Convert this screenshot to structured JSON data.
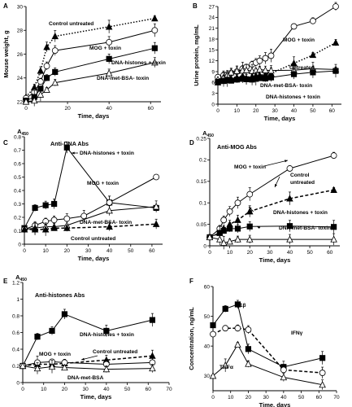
{
  "chart_data": [
    {
      "type": "line",
      "panel": "A",
      "xlabel": "Time, days",
      "ylabel": "Mouse weight, g",
      "xlim": [
        0,
        65
      ],
      "ylim": [
        22,
        30
      ],
      "xticks": [
        0,
        20,
        40,
        60
      ],
      "yticks": [
        22,
        24,
        26,
        28,
        30
      ],
      "series": [
        {
          "name": "Control untreated",
          "marker": "filled-triangle",
          "dash": "dotted",
          "x": [
            0,
            4,
            7,
            10,
            14,
            40,
            62
          ],
          "y": [
            22.4,
            23.2,
            24.6,
            26.6,
            27.5,
            28.3,
            29.0
          ]
        },
        {
          "name": "MOG + toxin",
          "marker": "open-circle",
          "dash": "solid",
          "x": [
            0,
            4,
            7,
            10,
            14,
            40,
            62
          ],
          "y": [
            22.3,
            22.8,
            23.7,
            25.0,
            26.3,
            27.0,
            28.0
          ]
        },
        {
          "name": "DNA-histones + toxin",
          "marker": "filled-square",
          "dash": "solid",
          "x": [
            0,
            4,
            7,
            10,
            14,
            40,
            62
          ],
          "y": [
            22.1,
            22.4,
            23.1,
            24.0,
            24.5,
            25.6,
            26.5
          ]
        },
        {
          "name": "DNA-met-BSA- toxin",
          "marker": "open-triangle",
          "dash": "solid",
          "x": [
            0,
            4,
            7,
            10,
            14,
            40,
            62
          ],
          "y": [
            22.0,
            22.1,
            22.6,
            23.0,
            23.6,
            24.4,
            25.3
          ]
        }
      ]
    },
    {
      "type": "line",
      "panel": "B",
      "xlabel": "Time, days",
      "ylabel": "Urine protein, mg/mL",
      "xlim": [
        0,
        65
      ],
      "ylim": [
        0,
        27
      ],
      "xticks": [
        0,
        10,
        20,
        30,
        40,
        50,
        60
      ],
      "yticks": [
        0,
        3,
        6,
        9,
        12,
        15,
        18,
        21,
        24,
        27
      ],
      "series": [
        {
          "name": "MOG + toxin",
          "marker": "open-circle",
          "dash": "solid",
          "x": [
            0,
            3,
            5,
            7,
            10,
            13,
            15,
            18,
            20,
            22,
            25,
            28,
            40,
            50,
            62
          ],
          "y": [
            7.5,
            8.0,
            8.2,
            8.6,
            9.0,
            9.8,
            10.3,
            11.0,
            11.5,
            12.0,
            12.7,
            13.4,
            21.5,
            23.0,
            27.0
          ]
        },
        {
          "name": "Untreated",
          "marker": "filled-triangle",
          "dash": "dotted",
          "x": [
            0,
            3,
            5,
            7,
            10,
            13,
            15,
            18,
            20,
            22,
            25,
            28,
            40,
            50,
            62
          ],
          "y": [
            6.0,
            6.5,
            6.8,
            7.0,
            7.4,
            7.8,
            7.2,
            7.6,
            7.9,
            8.0,
            8.3,
            8.5,
            11.3,
            13.6,
            17.0
          ]
        },
        {
          "name": "DNA-met-BSA- toxin",
          "marker": "open-triangle",
          "dash": "solid",
          "x": [
            0,
            3,
            5,
            7,
            10,
            13,
            15,
            18,
            20,
            22,
            25,
            28,
            40,
            50,
            62
          ],
          "y": [
            6.8,
            7.4,
            8.2,
            8.8,
            9.2,
            9.3,
            9.4,
            9.2,
            9.3,
            9.6,
            9.4,
            9.3,
            9.4,
            9.8,
            9.6
          ]
        },
        {
          "name": "DNA-histones + toxin",
          "marker": "filled-square",
          "dash": "solid",
          "x": [
            0,
            3,
            5,
            7,
            10,
            13,
            15,
            18,
            20,
            22,
            25,
            28,
            40,
            50,
            62
          ],
          "y": [
            6.2,
            6.4,
            6.6,
            6.5,
            6.8,
            7.0,
            6.9,
            6.8,
            7.0,
            7.2,
            7.1,
            7.4,
            8.3,
            8.8,
            9.2
          ]
        }
      ]
    },
    {
      "type": "line",
      "panel": "C",
      "title": "Anti-DNA Abs",
      "ylabel": "A",
      "ylabel_sub": "450",
      "xlabel": "Time, days",
      "xlim": [
        0,
        65
      ],
      "ylim": [
        0,
        0.8
      ],
      "xticks": [
        0,
        10,
        20,
        30,
        40,
        50,
        60
      ],
      "yticks": [
        0,
        0.1,
        0.2,
        0.3,
        0.4,
        0.5,
        0.6,
        0.7,
        0.8
      ],
      "series": [
        {
          "name": "DNA-histones + toxin",
          "marker": "filled-square",
          "dash": "solid",
          "x": [
            0,
            5,
            10,
            14,
            20,
            40,
            62
          ],
          "y": [
            0.12,
            0.27,
            0.29,
            0.3,
            0.72,
            0.31,
            0.27
          ]
        },
        {
          "name": "MOG + toxin",
          "marker": "open-circle",
          "dash": "solid",
          "x": [
            0,
            5,
            10,
            14,
            20,
            28,
            40,
            62
          ],
          "y": [
            0.11,
            0.14,
            0.17,
            0.18,
            0.19,
            0.21,
            0.31,
            0.5
          ]
        },
        {
          "name": "DNA-met-BSA- toxin",
          "marker": "open-triangle",
          "dash": "solid",
          "x": [
            0,
            5,
            10,
            14,
            20,
            40,
            62
          ],
          "y": [
            0.11,
            0.12,
            0.13,
            0.13,
            0.14,
            0.25,
            0.28
          ]
        },
        {
          "name": "Control untreated",
          "marker": "filled-triangle",
          "dash": "dashed",
          "x": [
            0,
            5,
            10,
            14,
            20,
            40,
            62
          ],
          "y": [
            0.11,
            0.11,
            0.11,
            0.12,
            0.12,
            0.13,
            0.15
          ]
        }
      ]
    },
    {
      "type": "line",
      "panel": "D",
      "title": "Anti-MOG Abs",
      "ylabel": "A",
      "ylabel_sub": "450",
      "xlabel": "Time, days",
      "xlim": [
        0,
        65
      ],
      "ylim": [
        0,
        0.25
      ],
      "xticks": [
        0,
        10,
        20,
        30,
        40,
        50,
        60
      ],
      "yticks": [
        0,
        0.05,
        0.1,
        0.15,
        0.2,
        0.25
      ],
      "series": [
        {
          "name": "MOG + toxin",
          "marker": "open-circle",
          "dash": "solid",
          "x": [
            0,
            5,
            7,
            10,
            14,
            20,
            40,
            62
          ],
          "y": [
            0.02,
            0.04,
            0.06,
            0.08,
            0.1,
            0.12,
            0.18,
            0.21
          ]
        },
        {
          "name": "Control untreated",
          "marker": "filled-triangle",
          "dash": "dashed",
          "x": [
            0,
            5,
            7,
            10,
            14,
            20,
            40,
            62
          ],
          "y": [
            0.02,
            0.03,
            0.04,
            0.05,
            0.06,
            0.08,
            0.11,
            0.13
          ]
        },
        {
          "name": "DNA-histones + toxin",
          "marker": "filled-square",
          "dash": "solid",
          "x": [
            0,
            5,
            7,
            10,
            14,
            20,
            40,
            62
          ],
          "y": [
            0.02,
            0.03,
            0.035,
            0.04,
            0.04,
            0.045,
            0.046,
            0.044
          ]
        },
        {
          "name": "DNA-met-BSA- toxin",
          "marker": "open-triangle",
          "dash": "solid",
          "x": [
            0,
            5,
            7,
            10,
            14,
            20,
            40,
            62
          ],
          "y": [
            0.02,
            0.015,
            0.007,
            0.01,
            0.015,
            0.015,
            0.015,
            0.015
          ]
        }
      ]
    },
    {
      "type": "line",
      "panel": "E",
      "title": "Anti-histones Abs",
      "ylabel": "A",
      "ylabel_sub": "450",
      "xlabel": "Time, days",
      "xlim": [
        0,
        70
      ],
      "ylim": [
        0,
        1.2
      ],
      "xticks": [
        0,
        10,
        20,
        30,
        40,
        50,
        60,
        70
      ],
      "yticks": [
        0,
        0.2,
        0.4,
        0.6,
        0.8,
        1.0,
        1.2
      ],
      "series": [
        {
          "name": "DNA-histones + toxin",
          "marker": "filled-square",
          "dash": "solid",
          "x": [
            0,
            7,
            14,
            20,
            40,
            62
          ],
          "y": [
            0.2,
            0.55,
            0.62,
            0.82,
            0.62,
            0.75
          ]
        },
        {
          "name": "Control untreated",
          "marker": "filled-triangle",
          "dash": "dashed",
          "x": [
            0,
            7,
            14,
            20,
            40,
            62
          ],
          "y": [
            0.2,
            0.22,
            0.22,
            0.23,
            0.27,
            0.32
          ]
        },
        {
          "name": "MOG + toxin",
          "marker": "open-circle",
          "dash": "solid",
          "x": [
            0,
            7,
            14,
            20,
            40,
            62
          ],
          "y": [
            0.2,
            0.24,
            0.25,
            0.24,
            0.22,
            0.24
          ]
        },
        {
          "name": "DNA-met-BSA",
          "marker": "open-triangle",
          "dash": "solid",
          "x": [
            0,
            7,
            14,
            20,
            40,
            62
          ],
          "y": [
            0.2,
            0.17,
            0.19,
            0.18,
            0.16,
            0.17
          ]
        }
      ]
    },
    {
      "type": "line",
      "panel": "F",
      "xlabel": "Time, days",
      "ylabel": "Concentration, ng/mL",
      "xlim": [
        0,
        70
      ],
      "ylim": [
        25,
        60
      ],
      "xticks": [
        0,
        10,
        20,
        30,
        40,
        50,
        60,
        70
      ],
      "yticks": [
        30,
        40,
        50,
        60
      ],
      "series": [
        {
          "name": "IL1β",
          "marker": "filled-square",
          "dash": "solid",
          "x": [
            0,
            7,
            14,
            20,
            40,
            62
          ],
          "y": [
            47,
            52.5,
            54,
            39,
            33,
            36
          ]
        },
        {
          "name": "IFNγ",
          "marker": "open-circle",
          "dash": "dashed",
          "x": [
            0,
            7,
            14,
            20,
            40,
            62
          ],
          "y": [
            44,
            46,
            46,
            45.5,
            32,
            31
          ]
        },
        {
          "name": "TNFα",
          "marker": "open-triangle",
          "dash": "solid",
          "x": [
            0,
            7,
            14,
            20,
            40,
            62
          ],
          "y": [
            30,
            33.5,
            40.5,
            34,
            29.5,
            27
          ]
        }
      ]
    }
  ],
  "panel_letters": [
    "A",
    "B",
    "C",
    "D",
    "E",
    "F"
  ],
  "annotations": {
    "A": [
      "Control untreated",
      "MOG + toxin",
      "DNA-histones + toxin",
      "DNA-met-BSA- toxin"
    ],
    "B": [
      "MOG + toxin",
      "Untreated",
      "DNA-met-BSA- toxin",
      "DNA-histones + toxin"
    ],
    "C": [
      "DNA-histones + toxin",
      "MOG + toxin",
      "DNA-met-BSA- toxin",
      "Control untreated"
    ],
    "D": [
      "MOG + toxin",
      "Control",
      "untreated",
      "DNA-histones + toxin",
      "DNA-met-BSA- toxin"
    ],
    "E": [
      "DNA-histones + toxin",
      "MOG + toxin",
      "Control untreated",
      "DNA-met-BSA"
    ],
    "F": [
      "IL1β",
      "IFNγ",
      "TNFα"
    ]
  }
}
